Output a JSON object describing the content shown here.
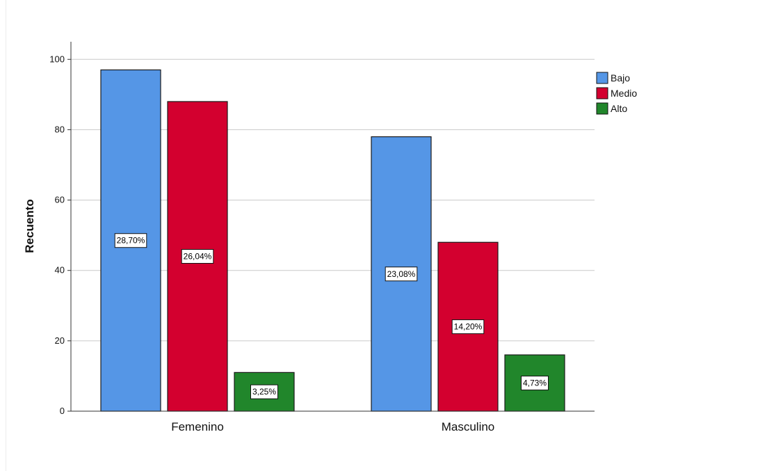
{
  "chart_data": {
    "type": "bar",
    "categories": [
      "Femenino",
      "Masculino"
    ],
    "series": [
      {
        "name": "Bajo",
        "color": "#5596e6",
        "values": [
          97,
          78
        ],
        "labels": [
          "28,70%",
          "23,08%"
        ]
      },
      {
        "name": "Medio",
        "color": "#d3002f",
        "values": [
          88,
          48
        ],
        "labels": [
          "26,04%",
          "14,20%"
        ]
      },
      {
        "name": "Alto",
        "color": "#21862b",
        "values": [
          11,
          16
        ],
        "labels": [
          "3,25%",
          "4,73%"
        ]
      }
    ],
    "ylabel": "Recuento",
    "xlabel": "",
    "ylim": [
      0,
      105
    ],
    "yticks": [
      0,
      20,
      40,
      60,
      80,
      100
    ],
    "grid": true,
    "legend_position": "top-right"
  }
}
